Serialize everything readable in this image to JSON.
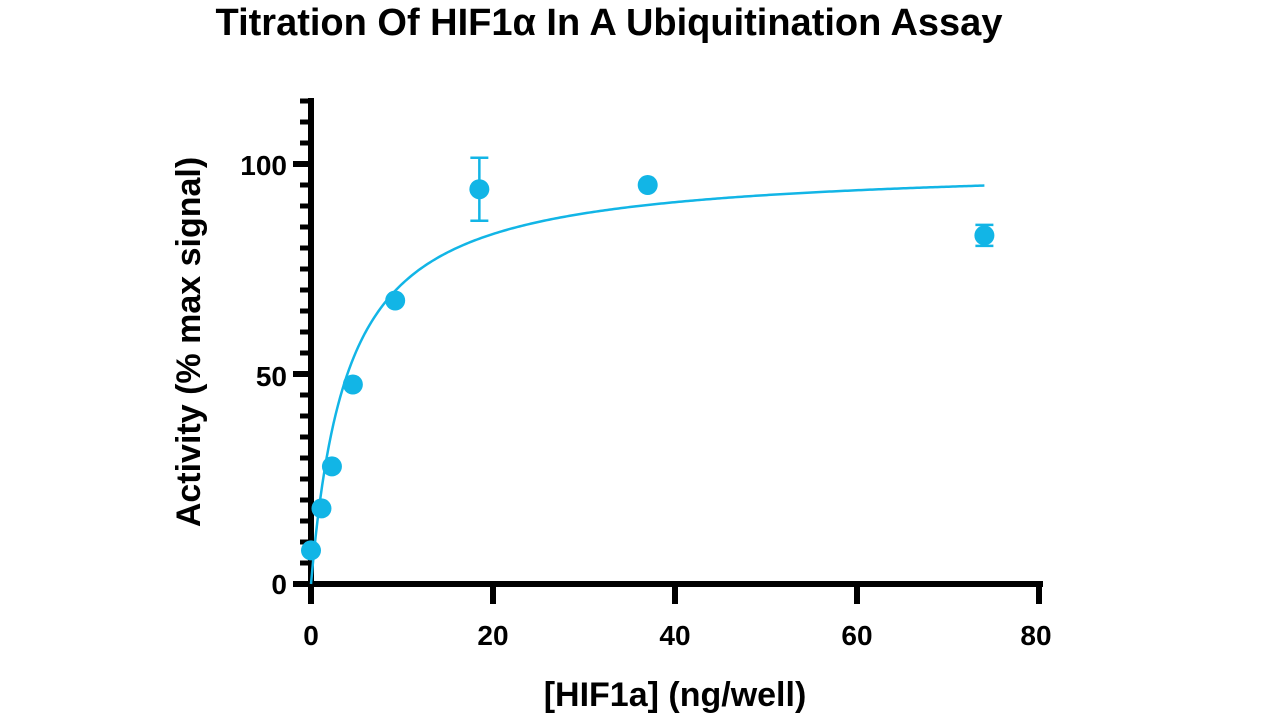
{
  "chart_data": {
    "type": "scatter",
    "title": "Titration Of HIF1α In A Ubiquitination Assay",
    "xlabel": "[HIF1a] (ng/well)",
    "ylabel": "Activity (% max signal)",
    "xlim": [
      0,
      80
    ],
    "ylim": [
      0,
      115
    ],
    "x_ticks": [
      "0",
      "20",
      "40",
      "60",
      "80"
    ],
    "y_ticks": [
      "0",
      "50",
      "100"
    ],
    "grid": false,
    "color": "#12b5e6",
    "series": [
      {
        "points": [
          {
            "x": 0.0,
            "y": 8.0,
            "err": 0
          },
          {
            "x": 1.15,
            "y": 18.0,
            "err": 0
          },
          {
            "x": 2.3,
            "y": 28.0,
            "err": 0
          },
          {
            "x": 4.6,
            "y": 47.5,
            "err": 0
          },
          {
            "x": 9.25,
            "y": 67.5,
            "err": 0
          },
          {
            "x": 18.5,
            "y": 94.0,
            "err": 7.5
          },
          {
            "x": 37.0,
            "y": 95.0,
            "err": 0
          },
          {
            "x": 74.0,
            "y": 83.0,
            "err": 2.5
          }
        ],
        "fit": {
          "model": "hyperbolic",
          "ymax": 100,
          "k": 4.0,
          "x_range": [
            0,
            74
          ]
        }
      }
    ]
  }
}
